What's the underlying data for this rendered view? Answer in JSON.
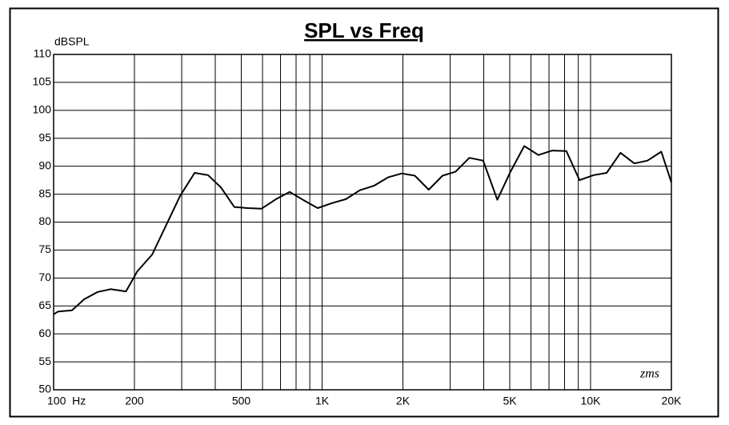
{
  "chart_data": {
    "type": "line",
    "title": "SPL vs Freq",
    "y_label": "dBSPL",
    "annotation": "zms",
    "xlog": true,
    "grid": true,
    "color": "#000000",
    "x": [
      100,
      104,
      117,
      130,
      146,
      163,
      186,
      205,
      233,
      261,
      296,
      335,
      376,
      420,
      471,
      529,
      595,
      673,
      758,
      855,
      963,
      1087,
      1225,
      1383,
      1560,
      1760,
      1981,
      2215,
      2495,
      2809,
      3140,
      3535,
      3980,
      4495,
      5030,
      5660,
      6395,
      7200,
      8130,
      9095,
      10270,
      11480,
      12930,
      14560,
      16290,
      18340,
      20000
    ],
    "values": [
      63.5,
      64,
      64.2,
      66.2,
      67.5,
      68,
      67.6,
      71.2,
      74.2,
      79.2,
      84.7,
      88.8,
      88.4,
      86.2,
      82.7,
      82.5,
      82.4,
      84.1,
      85.4,
      83.9,
      82.5,
      83.4,
      84.1,
      85.7,
      86.5,
      88,
      88.7,
      88.3,
      85.8,
      88.3,
      89,
      91.5,
      91,
      84,
      89,
      93.6,
      92,
      92.8,
      92.7,
      87.5,
      88.4,
      88.8,
      92.4,
      90.5,
      91,
      92.6,
      87.1
    ],
    "xlim": [
      100,
      20000
    ],
    "xticks": [
      {
        "value": 100,
        "label": "100  Hz"
      },
      200,
      500,
      {
        "value": 1000,
        "label": "1K"
      },
      {
        "value": 2000,
        "label": "2K"
      },
      {
        "value": 5000,
        "label": "5K"
      },
      {
        "value": 10000,
        "label": "10K"
      },
      {
        "value": 20000,
        "label": "20K"
      }
    ],
    "xgrid": [
      300,
      400,
      600,
      700,
      800,
      900,
      3000,
      4000,
      6000,
      7000,
      8000,
      9000
    ],
    "ylim": [
      50,
      110
    ],
    "yticks": [
      50,
      55,
      60,
      65,
      70,
      75,
      80,
      85,
      90,
      95,
      100,
      105,
      110
    ]
  }
}
